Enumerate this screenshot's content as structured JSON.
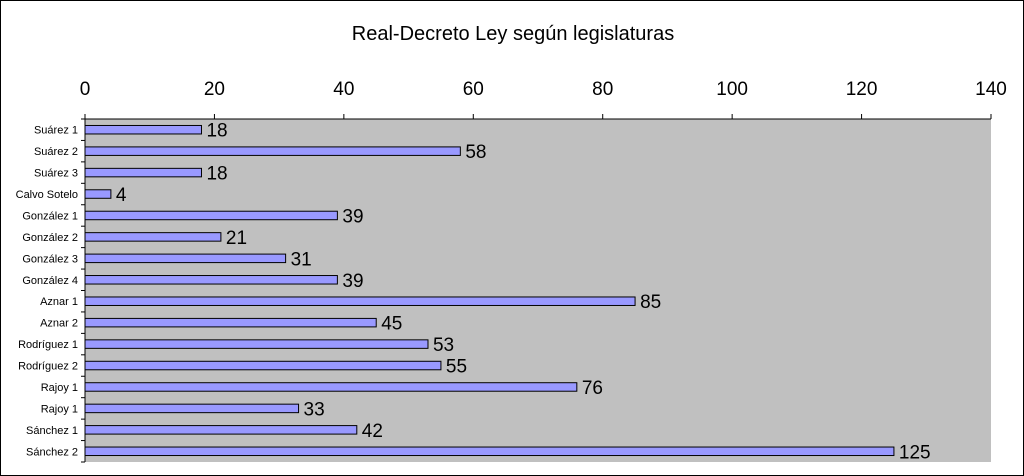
{
  "chart_data": {
    "type": "bar",
    "orientation": "horizontal",
    "title": "Real-Decreto Ley según legislaturas",
    "xlabel": "",
    "ylabel": "",
    "xlim": [
      0,
      140
    ],
    "xticks": [
      0,
      20,
      40,
      60,
      80,
      100,
      120,
      140
    ],
    "x_axis_position": "top",
    "grid": false,
    "legend": "none",
    "categories": [
      "Suárez 1",
      "Suárez 2",
      "Suárez 3",
      "Calvo Sotelo",
      "González 1",
      "González 2",
      "González 3",
      "González 4",
      "Aznar 1",
      "Aznar 2",
      "Rodríguez 1",
      "Rodríguez 2",
      "Rajoy 1",
      "Rajoy 1",
      "Sánchez 1",
      "Sánchez 2"
    ],
    "values": [
      18,
      58,
      18,
      4,
      39,
      21,
      31,
      39,
      85,
      45,
      53,
      55,
      76,
      33,
      42,
      125
    ],
    "colors": {
      "bar_fill": "#9999ff",
      "bar_stroke": "#000000",
      "plot_bg": "#c0c0c0",
      "page_bg": "#ffffff"
    }
  }
}
